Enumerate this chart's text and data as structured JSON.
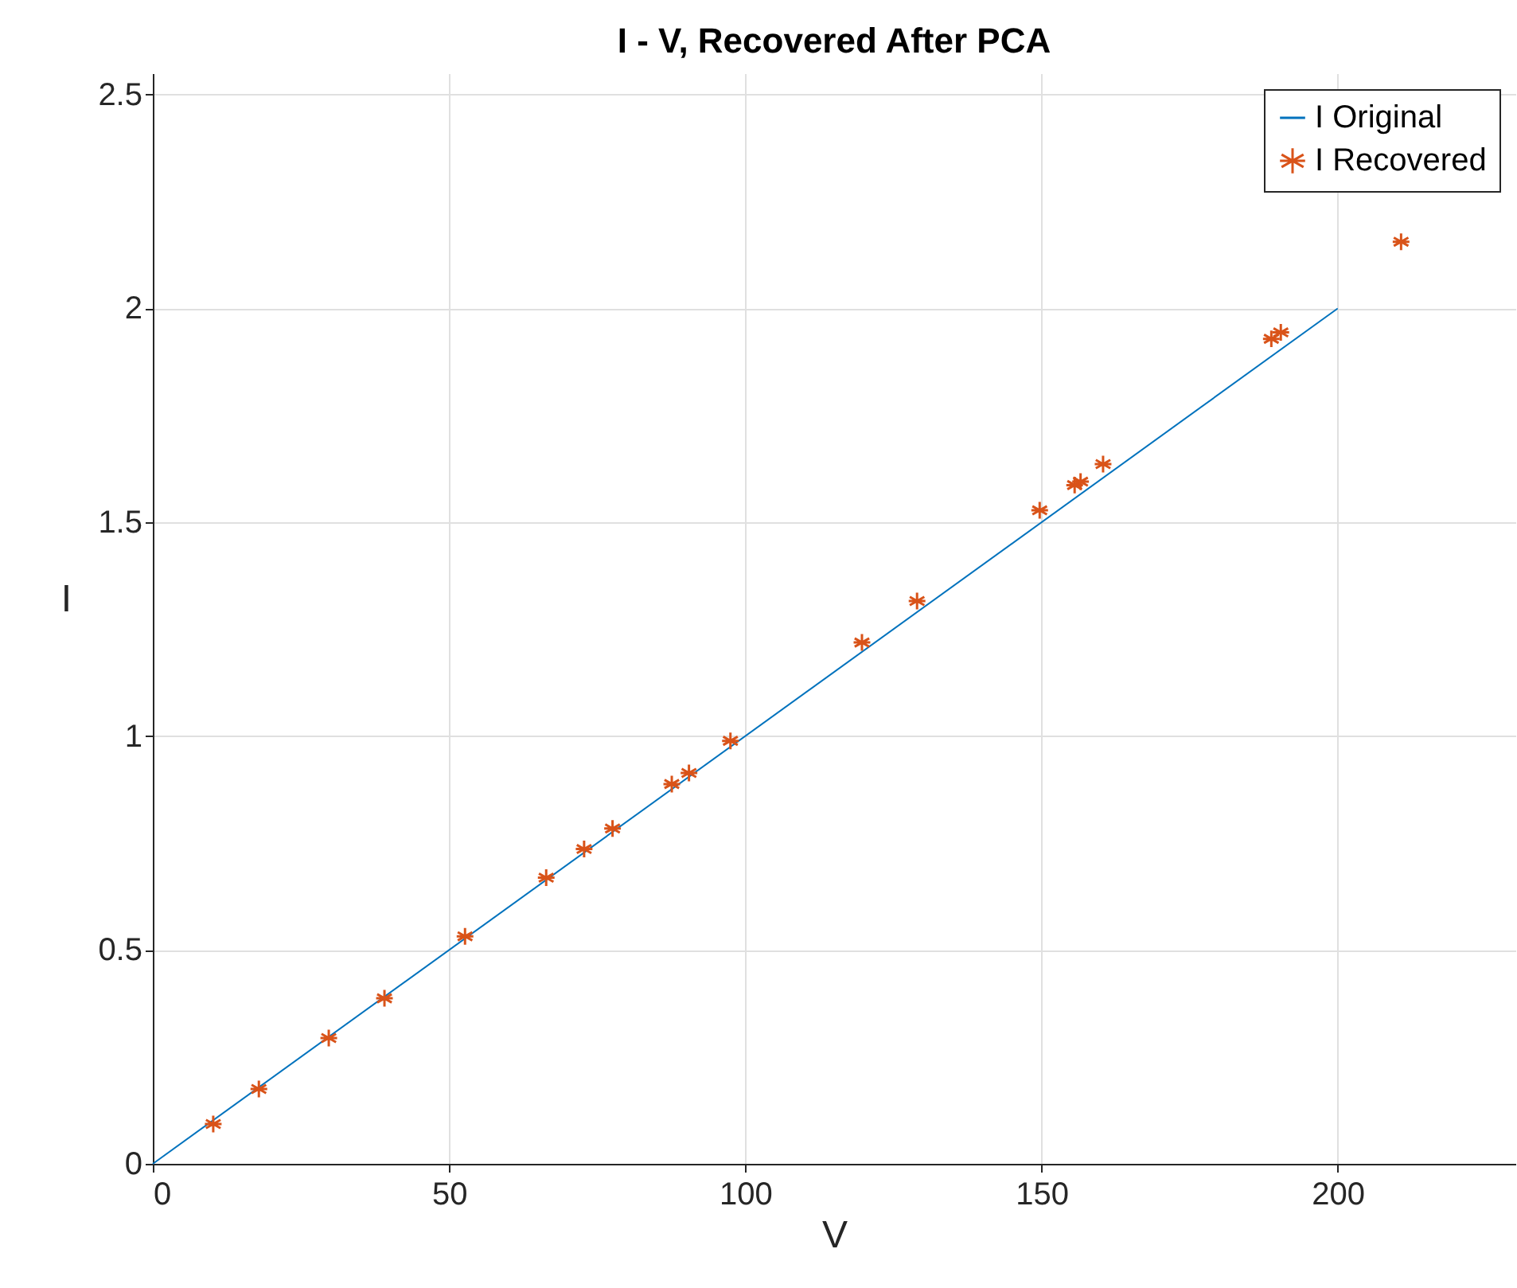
{
  "chart_data": {
    "type": "scatter",
    "title": "I - V, Recovered After PCA",
    "xlabel": "V",
    "ylabel": "I",
    "xlim": [
      0,
      230
    ],
    "xticks": [
      0,
      50,
      100,
      150,
      200
    ],
    "ylim": [
      0,
      2.55
    ],
    "yticks": [
      0,
      0.5,
      1,
      1.5,
      2,
      2.5
    ],
    "grid": true,
    "legend": "top right",
    "series": [
      {
        "name": "I Original",
        "type": "line",
        "color": "#0072bd",
        "line_style": "solid",
        "marker": "none",
        "x": [
          0,
          200
        ],
        "values": [
          0,
          2
        ]
      },
      {
        "name": "I Recovered",
        "type": "scatter",
        "color": "#d95319",
        "marker": "cross",
        "x": [
          10.2,
          17.9,
          29.7,
          39.1,
          52.7,
          66.4,
          72.8,
          77.6,
          87.6,
          90.5,
          97.5,
          119.7,
          129.0,
          149.7,
          155.6,
          156.6,
          160.4,
          188.8,
          190.4,
          210.7
        ],
        "values": [
          0.093,
          0.175,
          0.294,
          0.387,
          0.532,
          0.669,
          0.736,
          0.784,
          0.888,
          0.914,
          0.989,
          1.219,
          1.316,
          1.528,
          1.587,
          1.595,
          1.636,
          1.929,
          1.944,
          2.156
        ]
      }
    ]
  }
}
